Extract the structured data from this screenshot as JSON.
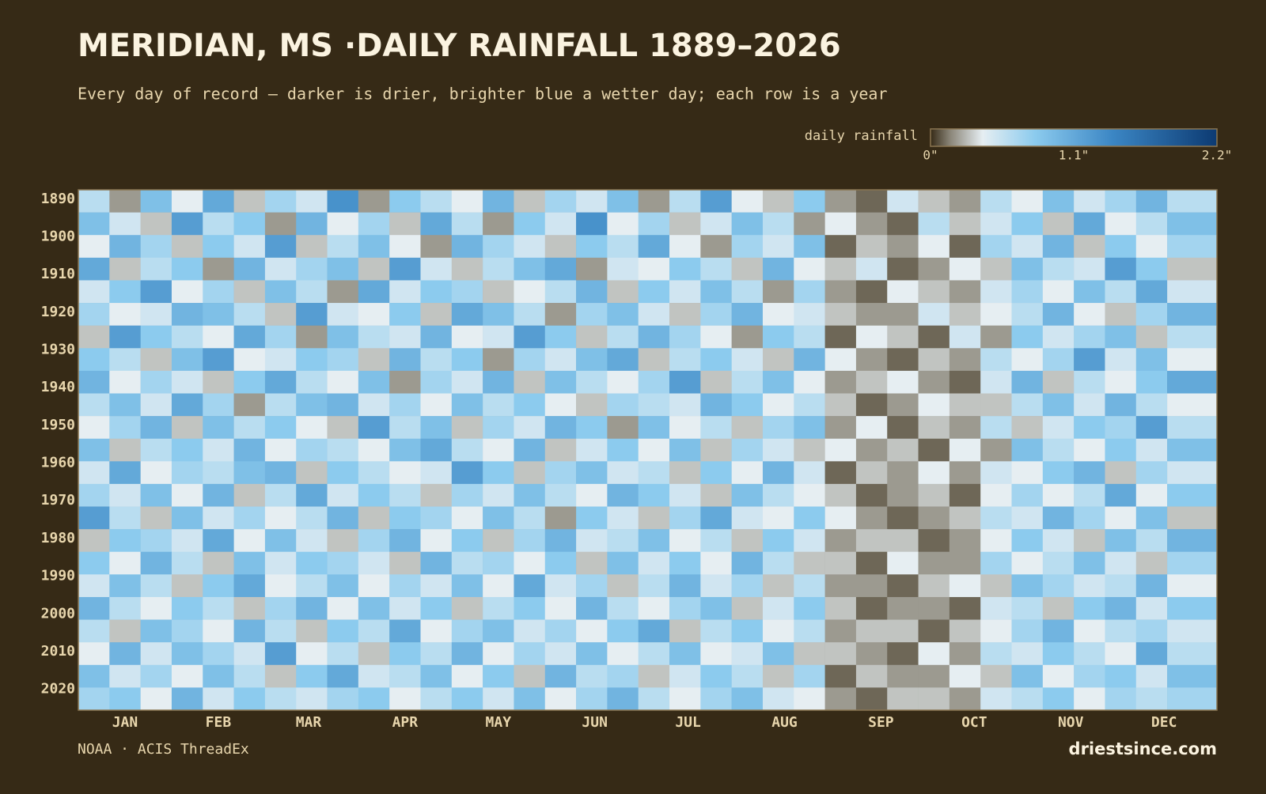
{
  "chart_data": {
    "type": "heatmap",
    "title": "MERIDIAN, MS ·DAILY RAINFALL 1889–2026",
    "subtitle": "Every day of record — darker is drier, brighter blue a wetter day; each row is a year",
    "colorbar_label": "daily rainfall",
    "source": "NOAA · ACIS ThreadEx",
    "brand": "driestsince.com",
    "clim": [
      0,
      2.2
    ],
    "cticks": [
      {
        "value": 0,
        "label": "0\""
      },
      {
        "value": 1.1,
        "label": "1.1\""
      },
      {
        "value": 2.2,
        "label": "2.2\""
      }
    ],
    "colorscale": [
      {
        "value": 0,
        "color": "#362a16"
      },
      {
        "value": 0.15,
        "color": "#8a8578"
      },
      {
        "value": 0.4,
        "color": "#e6eef2"
      },
      {
        "value": 0.8,
        "color": "#8ccbee"
      },
      {
        "value": 1.4,
        "color": "#3b86c4"
      },
      {
        "value": 2.2,
        "color": "#0c3a72"
      }
    ],
    "xlim": [
      1,
      367
    ],
    "xticks": [
      {
        "value": 16,
        "label": "JAN"
      },
      {
        "value": 46,
        "label": "FEB"
      },
      {
        "value": 75,
        "label": "MAR"
      },
      {
        "value": 106,
        "label": "APR"
      },
      {
        "value": 136,
        "label": "MAY"
      },
      {
        "value": 167,
        "label": "JUN"
      },
      {
        "value": 197,
        "label": "JUL"
      },
      {
        "value": 228,
        "label": "AUG"
      },
      {
        "value": 259,
        "label": "SEP"
      },
      {
        "value": 289,
        "label": "OCT"
      },
      {
        "value": 320,
        "label": "NOV"
      },
      {
        "value": 350,
        "label": "DEC"
      }
    ],
    "ylim": [
      1889,
      2027
    ],
    "yticks": [
      1890,
      1900,
      1910,
      1920,
      1930,
      1940,
      1950,
      1960,
      1970,
      1980,
      1990,
      2000,
      2010,
      2020
    ],
    "x": [
      1,
      11,
      21,
      31,
      41,
      51,
      61,
      71,
      81,
      91,
      101,
      111,
      121,
      131,
      141,
      151,
      161,
      171,
      181,
      191,
      201,
      211,
      221,
      231,
      241,
      251,
      261,
      271,
      281,
      291,
      301,
      311,
      321,
      331,
      341,
      351
    ],
    "y": [
      1889,
      1895,
      1901,
      1907,
      1913,
      1919,
      1925,
      1931,
      1937,
      1943,
      1949,
      1955,
      1961,
      1967,
      1973,
      1979,
      1985,
      1991,
      1997,
      2003,
      2009,
      2015,
      2021
    ],
    "values": [
      [
        0.6,
        0.2,
        0.9,
        0.4,
        1.1,
        0.3,
        0.7,
        0.5,
        1.3,
        0.2,
        0.8,
        0.6,
        0.4,
        1.0,
        0.3,
        0.7,
        0.5,
        0.9,
        0.2,
        0.6,
        1.2,
        0.4,
        0.3,
        0.8,
        0.2,
        0.1,
        0.5,
        0.3,
        0.2,
        0.6,
        0.4,
        0.9,
        0.5,
        0.7,
        1.0,
        0.6
      ],
      [
        0.9,
        0.5,
        0.3,
        1.2,
        0.6,
        0.8,
        0.2,
        1.0,
        0.4,
        0.7,
        0.3,
        1.1,
        0.6,
        0.2,
        0.8,
        0.5,
        1.3,
        0.4,
        0.7,
        0.3,
        0.5,
        0.9,
        0.6,
        0.2,
        0.4,
        0.2,
        0.1,
        0.6,
        0.3,
        0.5,
        0.8,
        0.3,
        1.1,
        0.4,
        0.6,
        0.9
      ],
      [
        0.4,
        1.0,
        0.7,
        0.3,
        0.8,
        0.5,
        1.2,
        0.3,
        0.6,
        0.9,
        0.4,
        0.2,
        1.0,
        0.7,
        0.5,
        0.3,
        0.8,
        0.6,
        1.1,
        0.4,
        0.2,
        0.7,
        0.5,
        0.9,
        0.1,
        0.3,
        0.2,
        0.4,
        0.1,
        0.7,
        0.5,
        1.0,
        0.3,
        0.8,
        0.4,
        0.7
      ],
      [
        1.1,
        0.3,
        0.6,
        0.8,
        0.2,
        1.0,
        0.5,
        0.7,
        0.9,
        0.3,
        1.2,
        0.5,
        0.3,
        0.6,
        0.9,
        1.1,
        0.2,
        0.5,
        0.4,
        0.8,
        0.6,
        0.3,
        1.0,
        0.4,
        0.3,
        0.5,
        0.1,
        0.2,
        0.4,
        0.3,
        0.9,
        0.6,
        0.5,
        1.2,
        0.8,
        0.3
      ],
      [
        0.5,
        0.8,
        1.2,
        0.4,
        0.7,
        0.3,
        0.9,
        0.6,
        0.2,
        1.1,
        0.5,
        0.8,
        0.7,
        0.3,
        0.4,
        0.6,
        1.0,
        0.3,
        0.8,
        0.5,
        0.9,
        0.6,
        0.2,
        0.7,
        0.2,
        0.1,
        0.4,
        0.3,
        0.2,
        0.5,
        0.7,
        0.4,
        0.9,
        0.6,
        1.1,
        0.5
      ],
      [
        0.7,
        0.4,
        0.5,
        1.0,
        0.9,
        0.6,
        0.3,
        1.2,
        0.5,
        0.4,
        0.8,
        0.3,
        1.1,
        0.9,
        0.6,
        0.2,
        0.7,
        0.9,
        0.5,
        0.3,
        0.7,
        1.0,
        0.4,
        0.5,
        0.3,
        0.2,
        0.2,
        0.5,
        0.3,
        0.4,
        0.6,
        1.0,
        0.4,
        0.3,
        0.7,
        1.0
      ],
      [
        0.3,
        1.2,
        0.8,
        0.6,
        0.4,
        1.1,
        0.7,
        0.2,
        0.9,
        0.6,
        0.5,
        1.0,
        0.4,
        0.5,
        1.2,
        0.8,
        0.3,
        0.6,
        1.0,
        0.7,
        0.4,
        0.2,
        0.8,
        0.6,
        0.1,
        0.4,
        0.3,
        0.1,
        0.5,
        0.2,
        0.8,
        0.5,
        0.7,
        0.9,
        0.3,
        0.6
      ],
      [
        0.8,
        0.6,
        0.3,
        0.9,
        1.2,
        0.4,
        0.5,
        0.8,
        0.7,
        0.3,
        1.0,
        0.6,
        0.8,
        0.2,
        0.7,
        0.5,
        0.9,
        1.1,
        0.3,
        0.6,
        0.8,
        0.5,
        0.3,
        1.0,
        0.4,
        0.2,
        0.1,
        0.3,
        0.2,
        0.6,
        0.4,
        0.7,
        1.2,
        0.5,
        0.9,
        0.4
      ],
      [
        1.0,
        0.4,
        0.7,
        0.5,
        0.3,
        0.8,
        1.1,
        0.6,
        0.4,
        0.9,
        0.2,
        0.7,
        0.5,
        1.0,
        0.3,
        0.9,
        0.6,
        0.4,
        0.7,
        1.2,
        0.3,
        0.6,
        0.9,
        0.4,
        0.2,
        0.3,
        0.4,
        0.2,
        0.1,
        0.5,
        1.0,
        0.3,
        0.6,
        0.4,
        0.8,
        1.1
      ],
      [
        0.6,
        0.9,
        0.5,
        1.1,
        0.7,
        0.2,
        0.6,
        0.9,
        1.0,
        0.5,
        0.7,
        0.4,
        0.9,
        0.6,
        0.8,
        0.4,
        0.3,
        0.7,
        0.6,
        0.5,
        1.0,
        0.8,
        0.4,
        0.6,
        0.3,
        0.1,
        0.2,
        0.4,
        0.3,
        0.3,
        0.6,
        0.9,
        0.5,
        1.0,
        0.6,
        0.4
      ],
      [
        0.4,
        0.7,
        1.0,
        0.3,
        0.9,
        0.6,
        0.8,
        0.4,
        0.3,
        1.2,
        0.6,
        0.9,
        0.3,
        0.7,
        0.5,
        1.0,
        0.8,
        0.2,
        0.9,
        0.4,
        0.6,
        0.3,
        0.7,
        0.9,
        0.2,
        0.4,
        0.1,
        0.3,
        0.2,
        0.6,
        0.3,
        0.5,
        0.8,
        0.7,
        1.2,
        0.6
      ],
      [
        0.9,
        0.3,
        0.6,
        0.8,
        0.5,
        1.0,
        0.4,
        0.7,
        0.6,
        0.4,
        0.9,
        1.1,
        0.6,
        0.4,
        1.0,
        0.3,
        0.5,
        0.8,
        0.4,
        0.9,
        0.3,
        0.7,
        0.5,
        0.3,
        0.4,
        0.2,
        0.3,
        0.1,
        0.4,
        0.2,
        0.9,
        0.6,
        0.4,
        0.8,
        0.5,
        0.9
      ],
      [
        0.5,
        1.1,
        0.4,
        0.7,
        0.6,
        0.9,
        1.0,
        0.3,
        0.8,
        0.6,
        0.4,
        0.5,
        1.2,
        0.8,
        0.3,
        0.7,
        0.9,
        0.5,
        0.6,
        0.3,
        0.8,
        0.4,
        1.0,
        0.5,
        0.1,
        0.3,
        0.2,
        0.4,
        0.2,
        0.5,
        0.4,
        0.8,
        1.0,
        0.3,
        0.7,
        0.5
      ],
      [
        0.7,
        0.5,
        0.9,
        0.4,
        1.0,
        0.3,
        0.6,
        1.1,
        0.5,
        0.8,
        0.6,
        0.3,
        0.7,
        0.5,
        0.9,
        0.6,
        0.4,
        1.0,
        0.8,
        0.5,
        0.3,
        0.9,
        0.6,
        0.4,
        0.3,
        0.1,
        0.2,
        0.3,
        0.1,
        0.4,
        0.7,
        0.4,
        0.6,
        1.1,
        0.4,
        0.8
      ],
      [
        1.2,
        0.6,
        0.3,
        0.9,
        0.5,
        0.7,
        0.4,
        0.6,
        1.0,
        0.3,
        0.8,
        0.7,
        0.4,
        0.9,
        0.6,
        0.2,
        0.8,
        0.5,
        0.3,
        0.7,
        1.1,
        0.5,
        0.4,
        0.8,
        0.4,
        0.2,
        0.1,
        0.2,
        0.3,
        0.6,
        0.5,
        1.0,
        0.7,
        0.4,
        0.9,
        0.3
      ],
      [
        0.3,
        0.8,
        0.7,
        0.5,
        1.1,
        0.4,
        0.9,
        0.5,
        0.3,
        0.7,
        1.0,
        0.4,
        0.8,
        0.3,
        0.7,
        1.0,
        0.5,
        0.6,
        0.9,
        0.4,
        0.6,
        0.3,
        0.8,
        0.5,
        0.2,
        0.3,
        0.3,
        0.1,
        0.2,
        0.4,
        0.8,
        0.5,
        0.3,
        0.9,
        0.6,
        1.0
      ],
      [
        0.8,
        0.4,
        1.0,
        0.6,
        0.3,
        0.9,
        0.5,
        0.8,
        0.7,
        0.5,
        0.3,
        1.0,
        0.6,
        0.7,
        0.4,
        0.8,
        0.3,
        0.9,
        0.5,
        0.8,
        0.4,
        1.0,
        0.6,
        0.3,
        0.3,
        0.1,
        0.4,
        0.2,
        0.2,
        0.7,
        0.4,
        0.6,
        0.9,
        0.5,
        0.3,
        0.7
      ],
      [
        0.5,
        0.9,
        0.6,
        0.3,
        0.8,
        1.1,
        0.4,
        0.6,
        0.9,
        0.4,
        0.7,
        0.5,
        0.9,
        0.4,
        1.1,
        0.5,
        0.7,
        0.3,
        0.6,
        1.0,
        0.5,
        0.7,
        0.3,
        0.6,
        0.2,
        0.2,
        0.1,
        0.3,
        0.4,
        0.3,
        0.9,
        0.7,
        0.5,
        0.6,
        1.0,
        0.4
      ],
      [
        1.0,
        0.6,
        0.4,
        0.8,
        0.6,
        0.3,
        0.7,
        1.0,
        0.4,
        0.9,
        0.5,
        0.8,
        0.3,
        0.6,
        0.8,
        0.4,
        1.0,
        0.6,
        0.4,
        0.7,
        0.9,
        0.3,
        0.5,
        0.8,
        0.3,
        0.1,
        0.2,
        0.2,
        0.1,
        0.5,
        0.6,
        0.3,
        0.8,
        1.0,
        0.5,
        0.8
      ],
      [
        0.6,
        0.3,
        0.9,
        0.7,
        0.4,
        1.0,
        0.6,
        0.3,
        0.8,
        0.6,
        1.1,
        0.4,
        0.7,
        0.9,
        0.5,
        0.7,
        0.4,
        0.8,
        1.1,
        0.3,
        0.6,
        0.8,
        0.4,
        0.6,
        0.2,
        0.3,
        0.3,
        0.1,
        0.3,
        0.4,
        0.7,
        1.0,
        0.4,
        0.6,
        0.7,
        0.5
      ],
      [
        0.4,
        1.0,
        0.5,
        0.9,
        0.7,
        0.5,
        1.2,
        0.4,
        0.6,
        0.3,
        0.8,
        0.6,
        1.0,
        0.4,
        0.7,
        0.5,
        0.9,
        0.4,
        0.6,
        0.9,
        0.4,
        0.5,
        0.9,
        0.3,
        0.3,
        0.2,
        0.1,
        0.4,
        0.2,
        0.6,
        0.5,
        0.8,
        0.6,
        0.4,
        1.1,
        0.6
      ],
      [
        0.9,
        0.5,
        0.7,
        0.4,
        0.9,
        0.6,
        0.3,
        0.8,
        1.1,
        0.5,
        0.6,
        0.9,
        0.4,
        0.8,
        0.3,
        1.0,
        0.6,
        0.7,
        0.3,
        0.5,
        0.8,
        0.6,
        0.3,
        0.7,
        0.1,
        0.3,
        0.2,
        0.2,
        0.4,
        0.3,
        0.9,
        0.4,
        0.7,
        0.8,
        0.5,
        0.9
      ],
      [
        0.7,
        0.8,
        0.4,
        1.0,
        0.5,
        0.8,
        0.6,
        0.5,
        0.7,
        0.8,
        0.4,
        0.6,
        0.8,
        0.5,
        0.9,
        0.4,
        0.7,
        1.0,
        0.6,
        0.4,
        0.7,
        0.9,
        0.5,
        0.4,
        0.2,
        0.1,
        0.3,
        0.3,
        0.2,
        0.5,
        0.6,
        0.8,
        0.4,
        0.7,
        0.6,
        0.7
      ]
    ]
  }
}
